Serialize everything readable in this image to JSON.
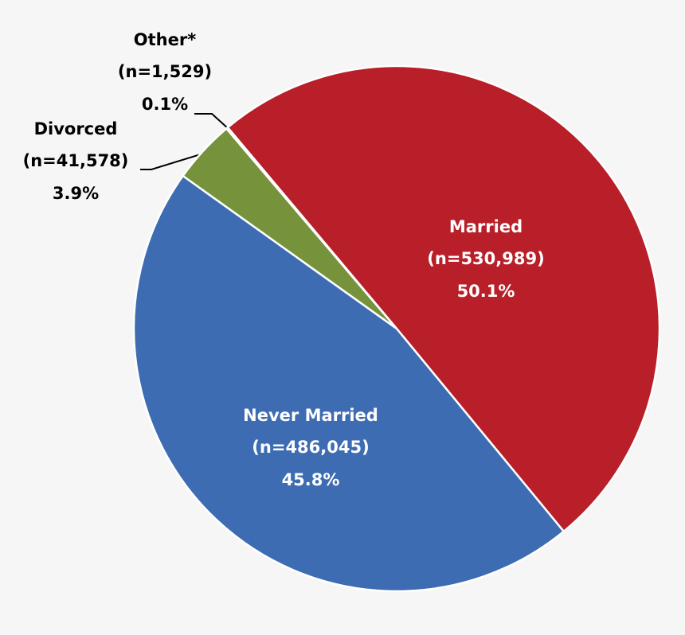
{
  "chart_data": {
    "type": "pie",
    "categories": [
      "Married",
      "Never Married",
      "Divorced",
      "Other*"
    ],
    "values": [
      50.1,
      45.8,
      3.9,
      0.1
    ],
    "value_labels": [
      "50.1%",
      "45.8%",
      "3.9%",
      "0.1%"
    ],
    "count_labels": [
      "(n=530,989)",
      "(n=486,045)",
      "(n=41,578)",
      "(n=1,529)"
    ],
    "colors": [
      "#b81f28",
      "#3d6cb3",
      "#76933c",
      "#8a8a8a"
    ]
  }
}
